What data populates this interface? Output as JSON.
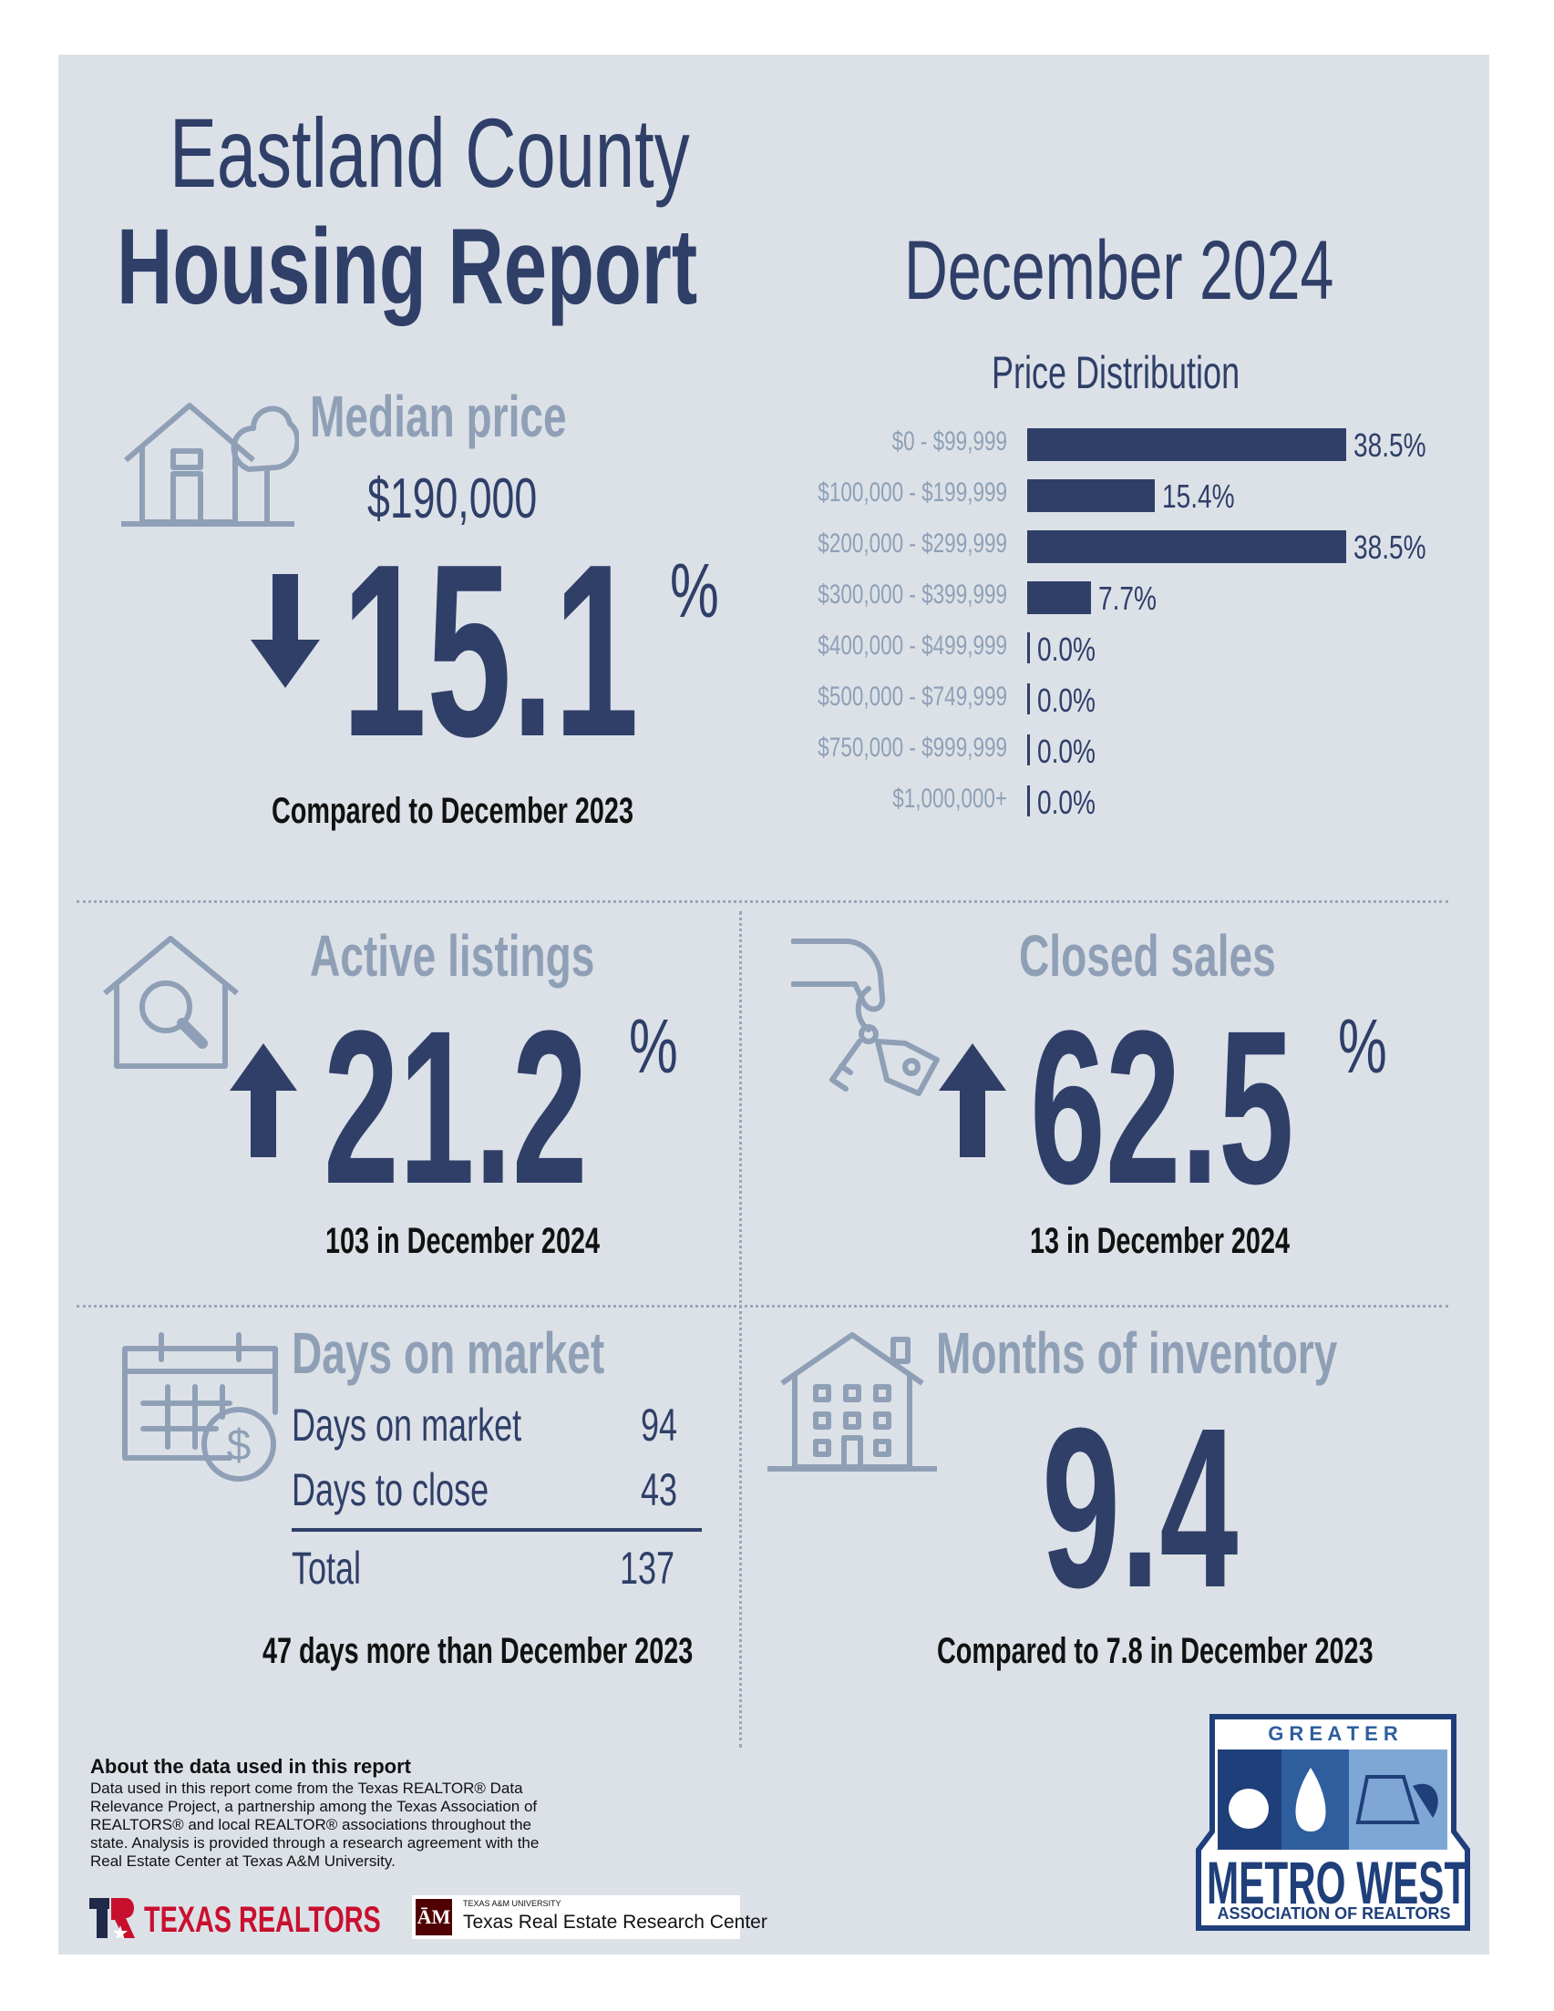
{
  "header": {
    "title_line1": "Eastland County",
    "title_line2": "Housing Report",
    "month": "December 2024"
  },
  "median_price": {
    "heading": "Median price",
    "value": "$190,000",
    "change": "15.1",
    "percent_sign": "%",
    "direction": "down",
    "comparison": "Compared to December 2023"
  },
  "chart_data": {
    "type": "bar",
    "title": "Price Distribution",
    "categories": [
      "$0 - $99,999",
      "$100,000 - $199,999",
      "$200,000 - $299,999",
      "$300,000 - $399,999",
      "$400,000 - $499,999",
      "$500,000 - $749,999",
      "$750,000 - $999,999",
      "$1,000,000+"
    ],
    "values": [
      38.5,
      15.4,
      38.5,
      7.7,
      0.0,
      0.0,
      0.0,
      0.0
    ],
    "value_labels": [
      "38.5%",
      "15.4%",
      "38.5%",
      "7.7%",
      "0.0%",
      "0.0%",
      "0.0%",
      "0.0%"
    ],
    "orientation": "horizontal",
    "xlim": [
      0,
      38.5
    ],
    "grid": false,
    "bar_color": "#2f3f68"
  },
  "active_listings": {
    "heading": "Active listings",
    "change": "21.2",
    "percent_sign": "%",
    "direction": "up",
    "detail": "103 in December 2024"
  },
  "closed_sales": {
    "heading": "Closed sales",
    "change": "62.5",
    "percent_sign": "%",
    "direction": "up",
    "detail": "13 in December 2024"
  },
  "days_on_market": {
    "heading": "Days on market",
    "rows": [
      {
        "label": "Days on market",
        "value": "94"
      },
      {
        "label": "Days to close",
        "value": "43"
      }
    ],
    "total_label": "Total",
    "total_value": "137",
    "comparison": "47 days more than December 2023"
  },
  "months_inventory": {
    "heading": "Months of inventory",
    "value": "9.4",
    "comparison": "Compared to 7.8 in December 2023"
  },
  "about": {
    "title": "About the data used in this report",
    "text": "Data used in this report come from the Texas REALTOR® Data Relevance Project, a partnership among the Texas Association of REALTORS® and local REALTOR® associations throughout the state. Analysis is provided through a research agreement with the Real Estate Center at Texas A&M University."
  },
  "logos": {
    "texas_realtors": "TEXAS REALTORS",
    "tamu_small": "TEXAS A&M UNIVERSITY",
    "tamu_center": "Texas Real Estate Research Center",
    "metro_top": "G R E A T E R",
    "metro_main": "METRO WEST",
    "metro_sub": "ASSOCIATION OF REALTORS"
  },
  "colors": {
    "navy": "#2f3f68",
    "muted": "#8fa0b6",
    "panel": "#dce1e8"
  },
  "icons": [
    "house-tree-icon",
    "down-arrow-icon",
    "house-search-icon",
    "up-arrow-icon",
    "hand-keys-icon",
    "calendar-dollar-icon",
    "building-icon"
  ]
}
